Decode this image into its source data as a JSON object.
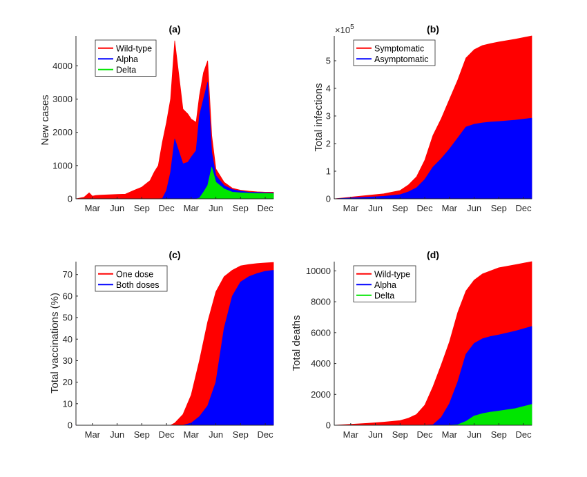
{
  "chart_data": [
    {
      "type": "area",
      "title": "(a)",
      "ylabel": "New cases",
      "xticks": [
        "Mar",
        "Jun",
        "Sep",
        "Dec",
        "Mar",
        "Jun",
        "Sep",
        "Dec"
      ],
      "ylim": [
        0,
        4900
      ],
      "yticks": [
        0,
        1000,
        2000,
        3000,
        4000
      ],
      "legend_position": "top-left",
      "x": [
        0,
        1,
        1.6,
        2,
        2.4,
        3,
        4,
        5,
        6,
        7,
        8,
        9,
        9.5,
        10,
        10.5,
        11,
        11.5,
        12,
        13,
        13.6,
        14,
        14.6,
        15,
        15.5,
        16,
        16.5,
        17,
        18,
        19,
        20,
        21,
        22,
        23,
        24
      ],
      "series": [
        {
          "name": "Wild-type",
          "color": "#ff0000",
          "values": [
            0,
            50,
            180,
            80,
            100,
            110,
            120,
            130,
            140,
            250,
            350,
            550,
            800,
            1000,
            1700,
            2300,
            3000,
            4750,
            2700,
            2550,
            2400,
            2300,
            3100,
            3800,
            4150,
            1900,
            900,
            500,
            320,
            260,
            230,
            210,
            200,
            200
          ]
        },
        {
          "name": "Alpha",
          "color": "#0000ff",
          "values": [
            0,
            0,
            0,
            0,
            0,
            0,
            0,
            0,
            0,
            0,
            0,
            0,
            0,
            0,
            10,
            250,
            800,
            1800,
            1050,
            1100,
            1250,
            1450,
            2500,
            3000,
            3500,
            1400,
            700,
            400,
            280,
            230,
            200,
            190,
            180,
            175
          ]
        },
        {
          "name": "Delta",
          "color": "#00e600",
          "values": [
            0,
            0,
            0,
            0,
            0,
            0,
            0,
            0,
            0,
            0,
            0,
            0,
            0,
            0,
            0,
            0,
            0,
            0,
            0,
            0,
            0,
            0,
            20,
            200,
            400,
            950,
            500,
            300,
            200,
            180,
            170,
            160,
            160,
            155
          ]
        }
      ]
    },
    {
      "type": "area",
      "title": "(b)",
      "ylabel": "Total infections",
      "exponent": "×10",
      "exponent_power": "5",
      "xticks": [
        "Mar",
        "Jun",
        "Sep",
        "Dec",
        "Mar",
        "Jun",
        "Sep",
        "Dec"
      ],
      "ylim": [
        0,
        5.9
      ],
      "yticks": [
        0,
        1,
        2,
        3,
        4,
        5
      ],
      "legend_position": "top-left",
      "x": [
        0,
        2,
        4,
        6,
        8,
        9,
        10,
        11,
        12,
        13,
        14,
        15,
        16,
        17,
        18,
        19,
        20,
        22,
        24
      ],
      "series": [
        {
          "name": "Symptomatic",
          "color": "#ff0000",
          "values": [
            0,
            0.06,
            0.12,
            0.18,
            0.3,
            0.5,
            0.8,
            1.4,
            2.3,
            2.9,
            3.6,
            4.3,
            5.1,
            5.4,
            5.55,
            5.62,
            5.68,
            5.78,
            5.9
          ]
        },
        {
          "name": "Asymptomatic",
          "color": "#0000ff",
          "values": [
            0,
            0.03,
            0.06,
            0.09,
            0.15,
            0.25,
            0.4,
            0.7,
            1.15,
            1.45,
            1.8,
            2.2,
            2.6,
            2.7,
            2.75,
            2.78,
            2.8,
            2.85,
            2.92
          ]
        }
      ]
    },
    {
      "type": "area",
      "title": "(c)",
      "ylabel": "Total vaccinations (%)",
      "xticks": [
        "Mar",
        "Jun",
        "Sep",
        "Dec",
        "Mar",
        "Jun",
        "Sep",
        "Dec"
      ],
      "ylim": [
        0,
        76
      ],
      "yticks": [
        0,
        10,
        20,
        30,
        40,
        50,
        60,
        70
      ],
      "legend_position": "top-left",
      "x": [
        0,
        2,
        4,
        6,
        8,
        10,
        11.5,
        12,
        13,
        14,
        15,
        16,
        17,
        18,
        19,
        20,
        21,
        22,
        23,
        24
      ],
      "series": [
        {
          "name": "One dose",
          "color": "#ff0000",
          "values": [
            0,
            0,
            0,
            0,
            0,
            0,
            0,
            1,
            5,
            14,
            30,
            48,
            62,
            69,
            72,
            74,
            74.7,
            75.1,
            75.4,
            75.6
          ]
        },
        {
          "name": "Both doses",
          "color": "#0000ff",
          "values": [
            0,
            0,
            0,
            0,
            0,
            0,
            0,
            0,
            0,
            1,
            4,
            9,
            20,
            45,
            60,
            66.5,
            69,
            70.5,
            71.5,
            72
          ]
        }
      ]
    },
    {
      "type": "area",
      "title": "(d)",
      "ylabel": "Total deaths",
      "xticks": [
        "Mar",
        "Jun",
        "Sep",
        "Dec",
        "Mar",
        "Jun",
        "Sep",
        "Dec"
      ],
      "ylim": [
        0,
        10600
      ],
      "yticks": [
        0,
        2000,
        4000,
        6000,
        8000,
        10000
      ],
      "legend_position": "top-left",
      "x": [
        0,
        2,
        4,
        6,
        8,
        9,
        10,
        11,
        12,
        13,
        14,
        15,
        16,
        17,
        18,
        19,
        20,
        22,
        24
      ],
      "series": [
        {
          "name": "Wild-type",
          "color": "#ff0000",
          "values": [
            0,
            60,
            120,
            200,
            300,
            450,
            700,
            1300,
            2500,
            3900,
            5400,
            7300,
            8700,
            9400,
            9800,
            10000,
            10200,
            10400,
            10600
          ]
        },
        {
          "name": "Alpha",
          "color": "#0000ff",
          "values": [
            0,
            0,
            0,
            0,
            0,
            0,
            0,
            0,
            30,
            500,
            1400,
            2800,
            4600,
            5300,
            5600,
            5750,
            5850,
            6100,
            6400
          ]
        },
        {
          "name": "Delta",
          "color": "#00e600",
          "values": [
            0,
            0,
            0,
            0,
            0,
            0,
            0,
            0,
            0,
            0,
            0,
            30,
            250,
            600,
            750,
            850,
            920,
            1080,
            1350
          ]
        }
      ]
    }
  ]
}
